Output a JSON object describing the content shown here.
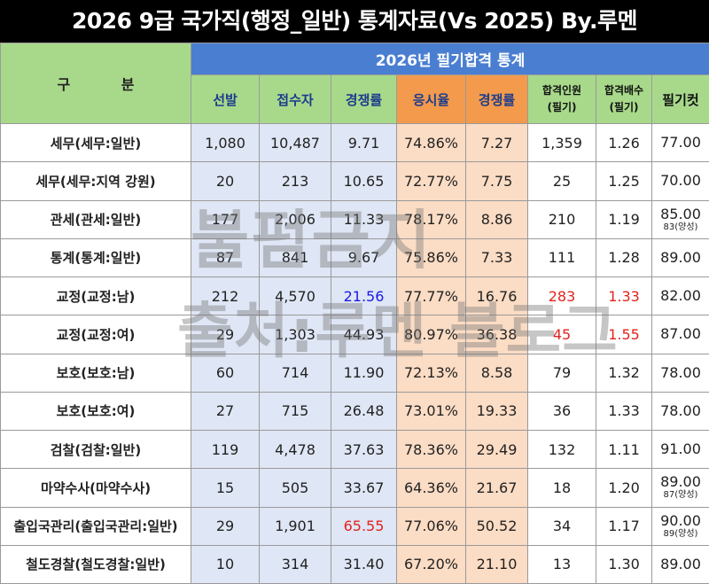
{
  "title": "2026 9급 국가직(행정_일반) 통계자료(Vs 2025) By.루멘",
  "table": {
    "corner_label": "구 분",
    "section_label": "2026년 필기합격 통계",
    "columns": [
      "선발",
      "접수자",
      "경쟁률",
      "응시율",
      "경쟁률",
      "합격인원\n(필기)",
      "합격배수\n(필기)",
      "필기컷"
    ],
    "rows": [
      {
        "name": "세무(세무:일반)",
        "cells": [
          "1,080",
          "10,487",
          "9.71",
          "74.86%",
          "7.27",
          "1,359",
          "1.26"
        ],
        "cut": "77.00",
        "cut_sub": ""
      },
      {
        "name": "세무(세무:지역 강원)",
        "cells": [
          "20",
          "213",
          "10.65",
          "72.77%",
          "7.75",
          "25",
          "1.25"
        ],
        "cut": "70.00",
        "cut_sub": ""
      },
      {
        "name": "관세(관세:일반)",
        "cells": [
          "177",
          "2,006",
          "11.33",
          "78.17%",
          "8.86",
          "210",
          "1.19"
        ],
        "cut": "85.00",
        "cut_sub": "83(양성)"
      },
      {
        "name": "통계(통계:일반)",
        "cells": [
          "87",
          "841",
          "9.67",
          "75.86%",
          "7.33",
          "111",
          "1.28"
        ],
        "cut": "89.00",
        "cut_sub": ""
      },
      {
        "name": "교정(교정:남)",
        "cells": [
          "212",
          "4,570",
          "21.56",
          "77.77%",
          "16.76",
          "283",
          "1.33"
        ],
        "cut": "82.00",
        "cut_sub": ""
      },
      {
        "name": "교정(교정:여)",
        "cells": [
          "29",
          "1,303",
          "44.93",
          "80.97%",
          "36.38",
          "45",
          "1.55"
        ],
        "cut": "87.00",
        "cut_sub": ""
      },
      {
        "name": "보호(보호:남)",
        "cells": [
          "60",
          "714",
          "11.90",
          "72.13%",
          "8.58",
          "79",
          "1.32"
        ],
        "cut": "78.00",
        "cut_sub": ""
      },
      {
        "name": "보호(보호:여)",
        "cells": [
          "27",
          "715",
          "26.48",
          "73.01%",
          "19.33",
          "36",
          "1.33"
        ],
        "cut": "78.00",
        "cut_sub": ""
      },
      {
        "name": "검찰(검찰:일반)",
        "cells": [
          "119",
          "4,478",
          "37.63",
          "78.36%",
          "29.49",
          "132",
          "1.11"
        ],
        "cut": "91.00",
        "cut_sub": ""
      },
      {
        "name": "마약수사(마약수사)",
        "cells": [
          "15",
          "505",
          "33.67",
          "64.36%",
          "21.67",
          "18",
          "1.20"
        ],
        "cut": "89.00",
        "cut_sub": "87(양성)"
      },
      {
        "name": "출입국관리(출입국관리:일반)",
        "cells": [
          "29",
          "1,901",
          "65.55",
          "77.06%",
          "50.52",
          "34",
          "1.17"
        ],
        "cut": "90.00",
        "cut_sub": "89(양성)"
      },
      {
        "name": "철도경찰(철도경찰:일반)",
        "cells": [
          "10",
          "314",
          "31.40",
          "67.20%",
          "21.10",
          "13",
          "1.30"
        ],
        "cut": "89.00",
        "cut_sub": ""
      }
    ],
    "highlights": {
      "blue": [
        [
          4,
          2
        ]
      ],
      "red": [
        [
          4,
          5
        ],
        [
          4,
          6
        ],
        [
          5,
          5
        ],
        [
          5,
          6
        ],
        [
          10,
          2
        ]
      ]
    }
  },
  "watermark": {
    "line1": "불펌금지",
    "line2": "출처:루멘 블로그"
  },
  "colors": {
    "title_bg": "#000000",
    "header_green": "#a8d98b",
    "header_blue": "#4a7ed1",
    "header_orange": "#f39a4c",
    "cell_blue": "#dfe6f5",
    "cell_orange": "#fbdcc4",
    "highlight_red": "#e1231e",
    "highlight_blue": "#1a1ae6"
  }
}
